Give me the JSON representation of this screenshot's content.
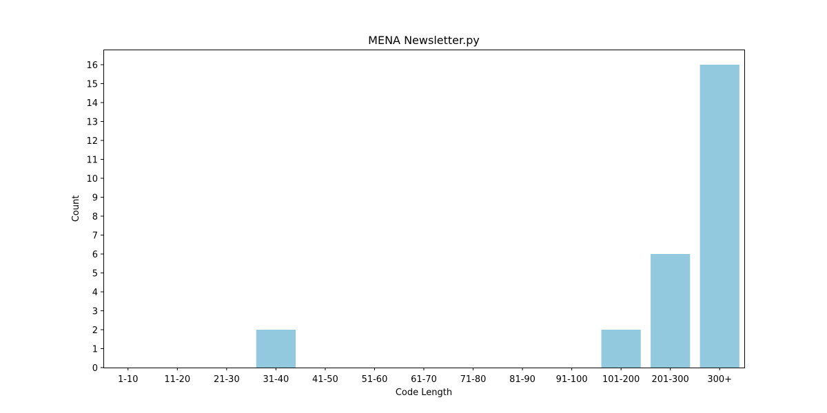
{
  "chart_data": {
    "type": "bar",
    "title": "MENA Newsletter.py",
    "xlabel": "Code Length",
    "ylabel": "Count",
    "categories": [
      "1-10",
      "11-20",
      "21-30",
      "31-40",
      "41-50",
      "51-60",
      "61-70",
      "71-80",
      "81-90",
      "91-100",
      "101-200",
      "201-300",
      "300+"
    ],
    "values": [
      0,
      0,
      0,
      2,
      0,
      0,
      0,
      0,
      0,
      0,
      2,
      6,
      16
    ],
    "ylim": [
      0,
      16.8
    ],
    "yticks": [
      0,
      1,
      2,
      3,
      4,
      5,
      6,
      7,
      8,
      9,
      10,
      11,
      12,
      13,
      14,
      15,
      16
    ],
    "bar_color": "#92c9df",
    "grid": false,
    "legend": "none"
  }
}
